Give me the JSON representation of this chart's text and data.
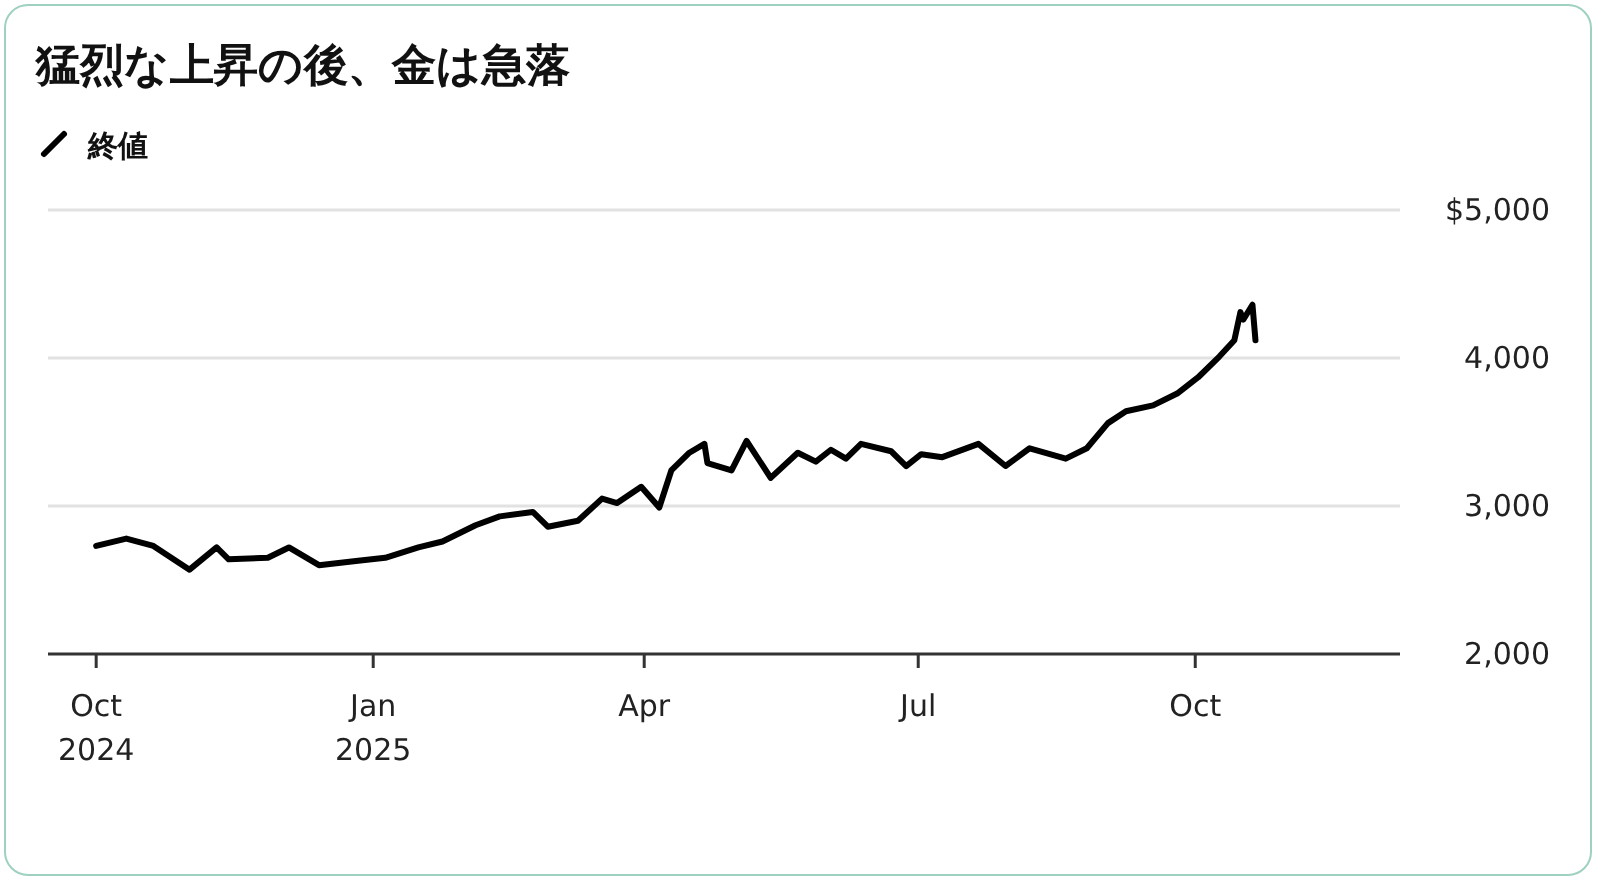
{
  "chart_data": {
    "type": "line",
    "title": "猛烈な上昇の後、金は急落",
    "x": [
      "2024-10-01",
      "2024-10-11",
      "2024-10-20",
      "2024-11-01",
      "2024-11-10",
      "2024-11-14",
      "2024-11-27",
      "2024-12-04",
      "2024-12-14",
      "2024-12-27",
      "2025-01-05",
      "2025-01-16",
      "2025-01-24",
      "2025-02-04",
      "2025-02-12",
      "2025-02-23",
      "2025-02-28",
      "2025-03-10",
      "2025-03-18",
      "2025-03-23",
      "2025-03-31",
      "2025-04-06",
      "2025-04-10",
      "2025-04-16",
      "2025-04-21",
      "2025-04-22",
      "2025-04-30",
      "2025-05-05",
      "2025-05-13",
      "2025-05-22",
      "2025-05-28",
      "2025-06-02",
      "2025-06-07",
      "2025-06-12",
      "2025-06-22",
      "2025-06-27",
      "2025-07-02",
      "2025-07-09",
      "2025-07-21",
      "2025-07-30",
      "2025-08-07",
      "2025-08-19",
      "2025-08-26",
      "2025-09-02",
      "2025-09-08",
      "2025-09-17",
      "2025-09-25",
      "2025-10-02",
      "2025-10-09",
      "2025-10-14",
      "2025-10-16",
      "2025-10-17",
      "2025-10-20",
      "2025-10-21"
    ],
    "series": [
      {
        "name": "終値",
        "color": "#000000",
        "values": [
          2730,
          2780,
          2730,
          2570,
          2720,
          2640,
          2650,
          2720,
          2600,
          2630,
          2650,
          2720,
          2760,
          2870,
          2930,
          2960,
          2860,
          2900,
          3050,
          3020,
          3130,
          2990,
          3240,
          3360,
          3420,
          3290,
          3240,
          3440,
          3190,
          3360,
          3300,
          3380,
          3320,
          3420,
          3370,
          3270,
          3350,
          3330,
          3420,
          3270,
          3390,
          3320,
          3390,
          3560,
          3640,
          3680,
          3760,
          3870,
          4010,
          4120,
          4310,
          4260,
          4360,
          4120
        ]
      }
    ],
    "xlim": [
      "2024-09-15",
      "2025-12-08"
    ],
    "xticks": [
      {
        "value": "2024-10-01",
        "label": "Oct 2024"
      },
      {
        "value": "2025-01-01",
        "label": "Jan 2025"
      },
      {
        "value": "2025-04-01",
        "label": "Apr"
      },
      {
        "value": "2025-07-01",
        "label": "Jul"
      },
      {
        "value": "2025-10-01",
        "label": "Oct"
      }
    ],
    "ylim": [
      2000,
      5000
    ],
    "yticks": [
      {
        "value": 2000,
        "label": "2,000"
      },
      {
        "value": 3000,
        "label": "3,000"
      },
      {
        "value": 4000,
        "label": "4,000"
      },
      {
        "value": 5000,
        "label": "$5,000"
      }
    ],
    "grid": "y",
    "legend": "top left",
    "marker": "none",
    "line_style": "solid"
  }
}
